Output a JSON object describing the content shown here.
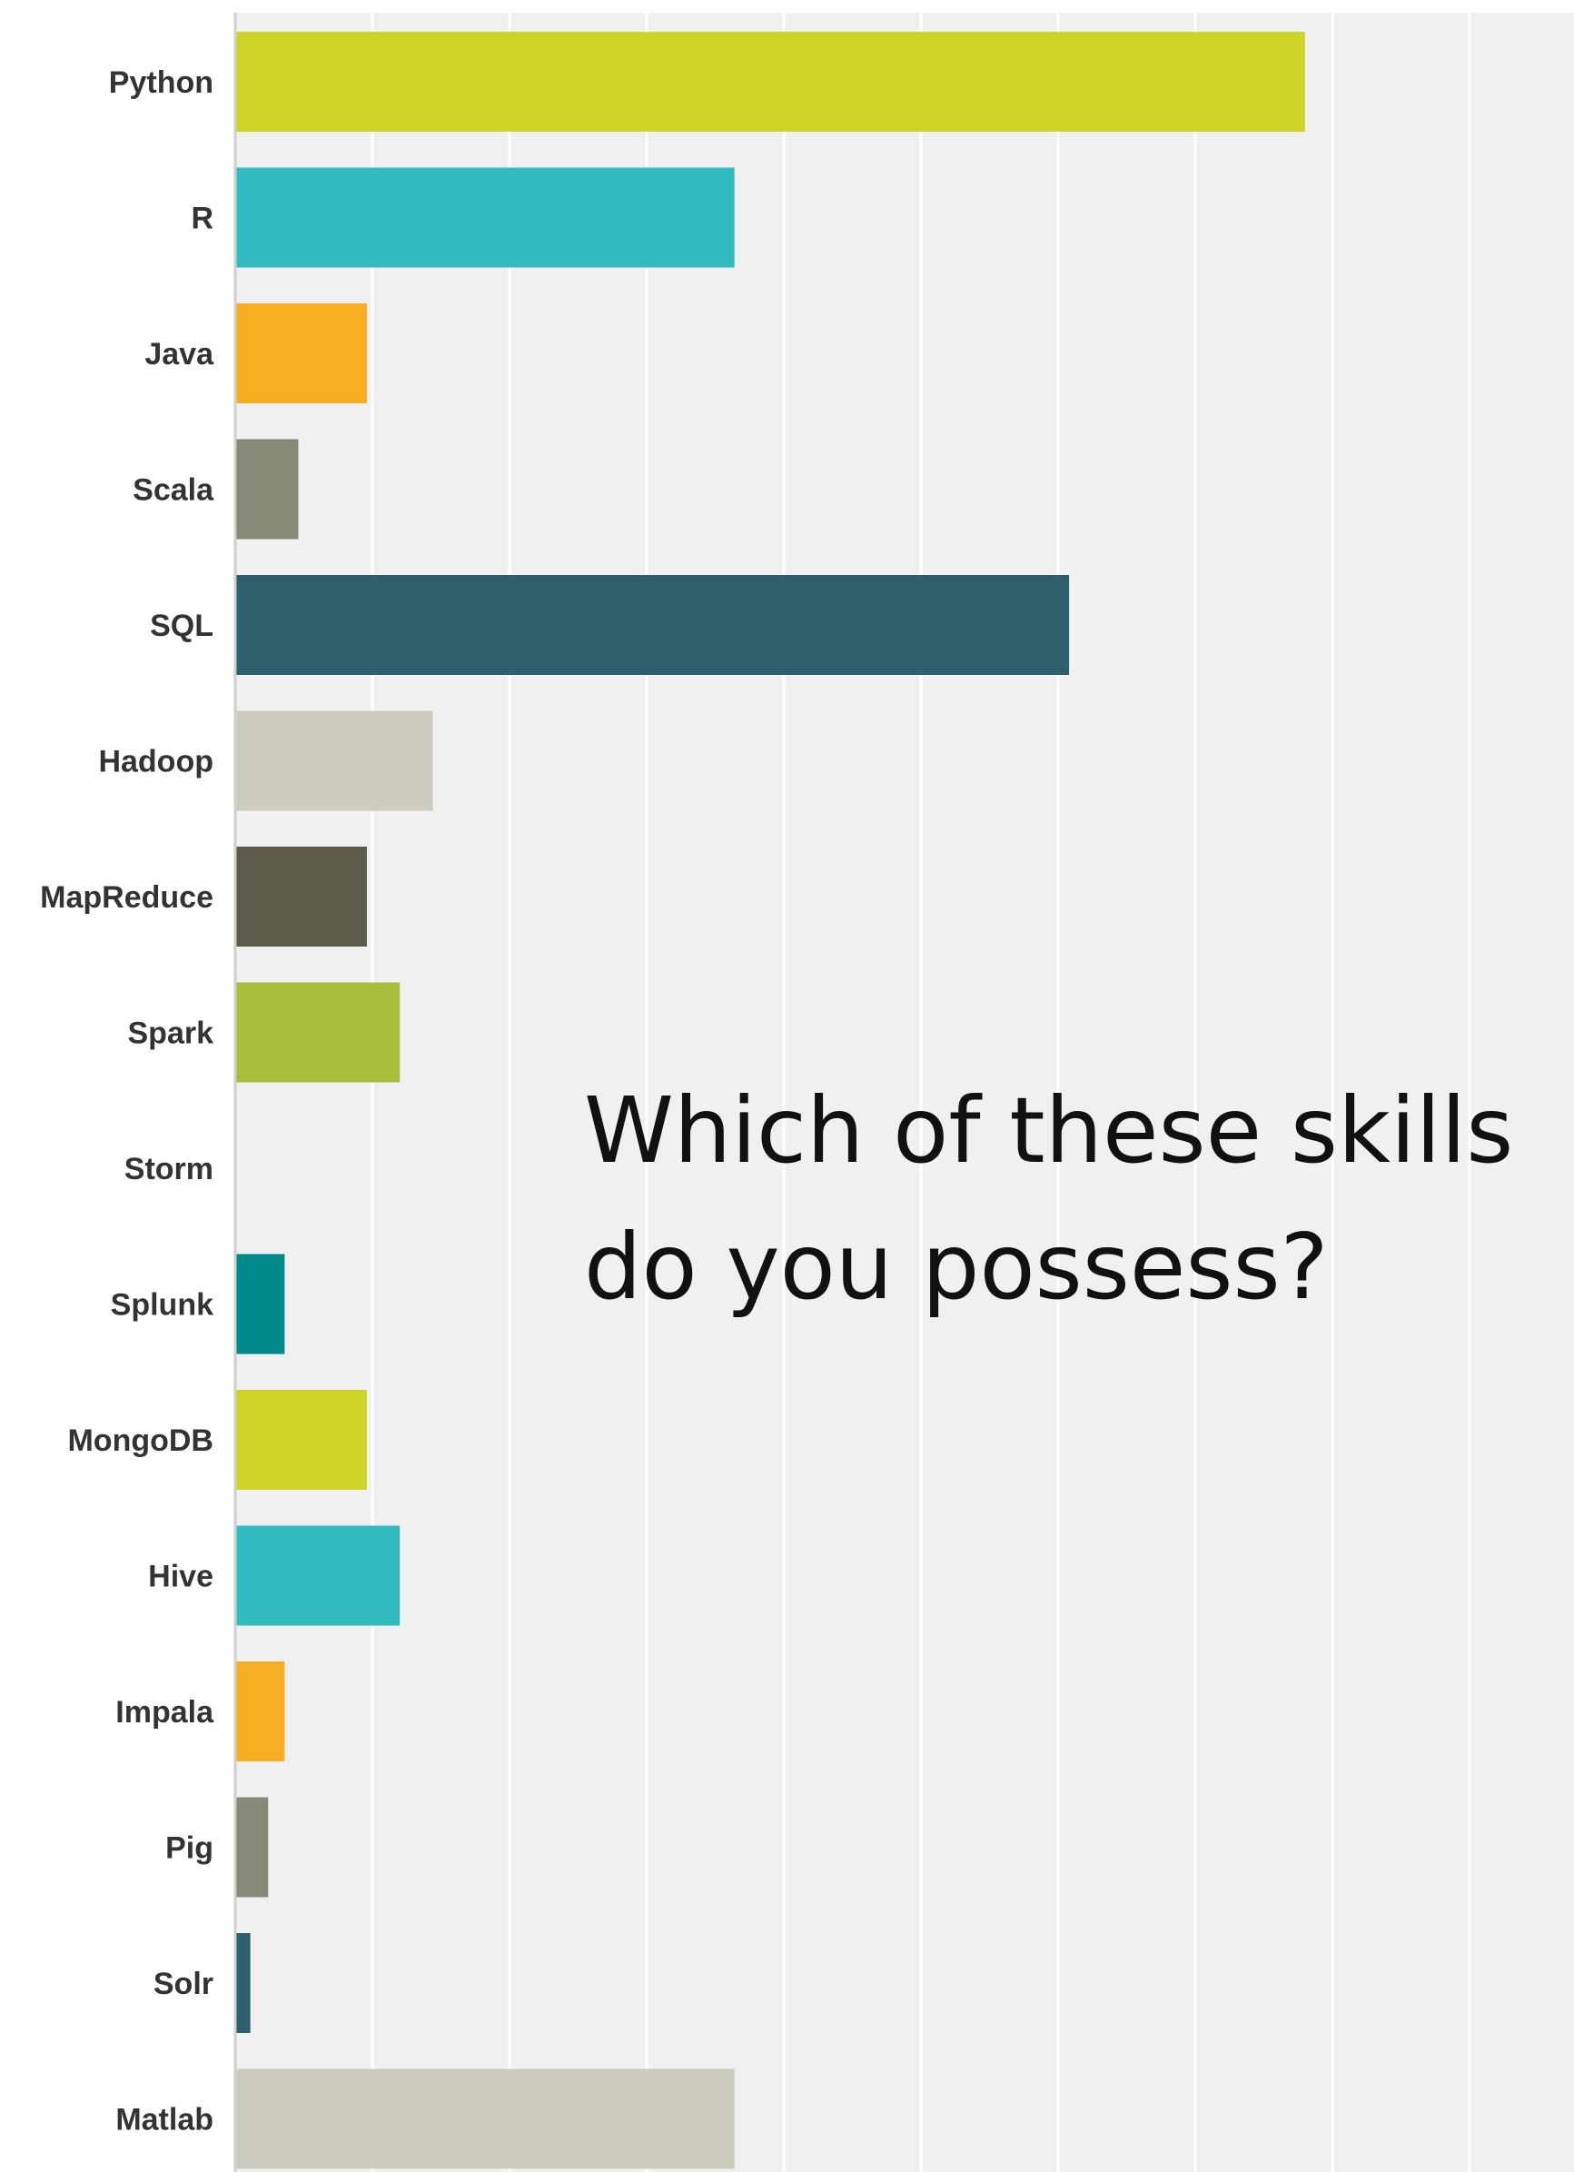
{
  "chart_data": {
    "type": "bar",
    "orientation": "horizontal",
    "title": "Which of these skills do you possess?",
    "categories": [
      "Python",
      "R",
      "Java",
      "Scala",
      "SQL",
      "Hadoop",
      "MapReduce",
      "Spark",
      "Storm",
      "Splunk",
      "MongoDB",
      "Hive",
      "Impala",
      "Pig",
      "Solr",
      "Matlab"
    ],
    "values": [
      39,
      18.2,
      4.8,
      2.3,
      30.4,
      7.2,
      4.8,
      6,
      0,
      1.8,
      4.8,
      6,
      1.8,
      1.2,
      0.55,
      18.2
    ],
    "colors": [
      "#cdd426",
      "#32bcbf",
      "#f5ae22",
      "#898978",
      "#2d5f6d",
      "#cdcbbc",
      "#5e5a4a",
      "#a8bd3a",
      "#f5ae22",
      "#00898a",
      "#cdd426",
      "#32bcbf",
      "#f5ae22",
      "#898978",
      "#2d5f6d",
      "#cdcbbc"
    ],
    "xlim": [
      0,
      50
    ],
    "gridlines": 10,
    "grid": true,
    "plot_background": "#f0f0f0"
  }
}
